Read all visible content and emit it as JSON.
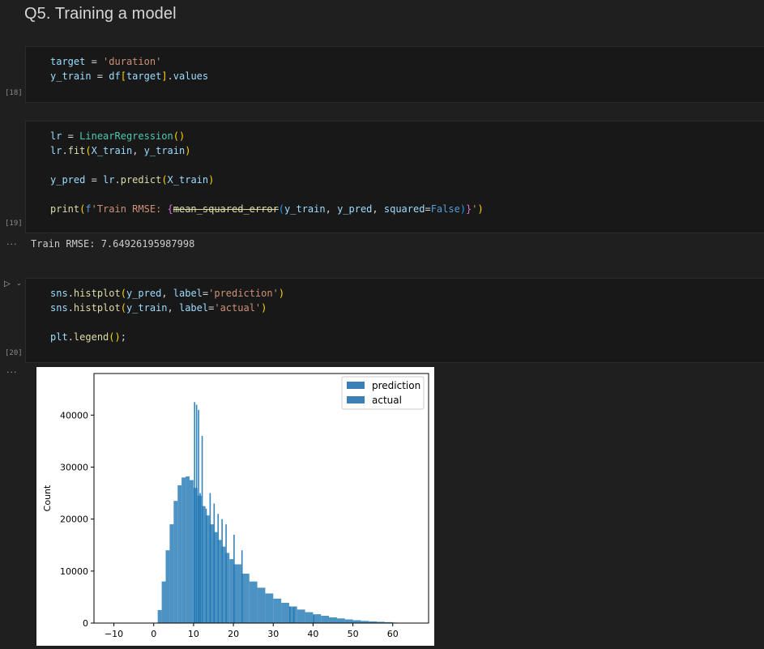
{
  "heading": "Q5. Training a model",
  "cells": [
    {
      "exec_count": "[18]",
      "lines": [
        [
          [
            "v",
            "target"
          ],
          [
            "o",
            " = "
          ],
          [
            "s",
            "'duration'"
          ]
        ],
        [
          [
            "v",
            "y_train"
          ],
          [
            "o",
            " = "
          ],
          [
            "v",
            "df"
          ],
          [
            "b1",
            "["
          ],
          [
            "v",
            "target"
          ],
          [
            "b1",
            "]"
          ],
          [
            "o",
            "."
          ],
          [
            "v",
            "values"
          ]
        ]
      ]
    },
    {
      "exec_count": "[19]",
      "lines": [
        [
          [
            "v",
            "lr"
          ],
          [
            "o",
            " = "
          ],
          [
            "c",
            "LinearRegression"
          ],
          [
            "b1",
            "()"
          ]
        ],
        [
          [
            "v",
            "lr"
          ],
          [
            "o",
            "."
          ],
          [
            "f",
            "fit"
          ],
          [
            "b1",
            "("
          ],
          [
            "v",
            "X_train"
          ],
          [
            "o",
            ", "
          ],
          [
            "v",
            "y_train"
          ],
          [
            "b1",
            ")"
          ]
        ],
        [],
        [
          [
            "v",
            "y_pred"
          ],
          [
            "o",
            " = "
          ],
          [
            "v",
            "lr"
          ],
          [
            "o",
            "."
          ],
          [
            "f",
            "predict"
          ],
          [
            "b1",
            "("
          ],
          [
            "v",
            "X_train"
          ],
          [
            "b1",
            ")"
          ]
        ],
        [],
        [
          [
            "f",
            "print"
          ],
          [
            "b1",
            "("
          ],
          [
            "k",
            "f"
          ],
          [
            "s",
            "'Train RMSE: "
          ],
          [
            "b2",
            "{"
          ],
          [
            "strike",
            "mean_squared_error"
          ],
          [
            "b3",
            "("
          ],
          [
            "v",
            "y_train"
          ],
          [
            "o",
            ", "
          ],
          [
            "v",
            "y_pred"
          ],
          [
            "o",
            ", "
          ],
          [
            "v",
            "squared"
          ],
          [
            "o",
            "="
          ],
          [
            "k",
            "False"
          ],
          [
            "b3",
            ")"
          ],
          [
            "b2",
            "}"
          ],
          [
            "s",
            "'"
          ],
          [
            "b1",
            ")"
          ]
        ]
      ],
      "output": "Train RMSE: 7.64926195987998"
    },
    {
      "exec_count": "[20]",
      "lines": [
        [
          [
            "v",
            "sns"
          ],
          [
            "o",
            "."
          ],
          [
            "f",
            "histplot"
          ],
          [
            "b1",
            "("
          ],
          [
            "v",
            "y_pred"
          ],
          [
            "o",
            ", "
          ],
          [
            "v",
            "label"
          ],
          [
            "o",
            "="
          ],
          [
            "s",
            "'prediction'"
          ],
          [
            "b1",
            ")"
          ]
        ],
        [
          [
            "v",
            "sns"
          ],
          [
            "o",
            "."
          ],
          [
            "f",
            "histplot"
          ],
          [
            "b1",
            "("
          ],
          [
            "v",
            "y_train"
          ],
          [
            "o",
            ", "
          ],
          [
            "v",
            "label"
          ],
          [
            "o",
            "="
          ],
          [
            "s",
            "'actual'"
          ],
          [
            "b1",
            ")"
          ]
        ],
        [],
        [
          [
            "v",
            "plt"
          ],
          [
            "o",
            "."
          ],
          [
            "f",
            "legend"
          ],
          [
            "b1",
            "()"
          ],
          [
            "o",
            ";"
          ]
        ]
      ]
    }
  ],
  "output_ellipsis": "···",
  "chart_data": {
    "type": "bar",
    "title": "",
    "xlabel": "",
    "ylabel": "Count",
    "xlim": [
      -15,
      69
    ],
    "ylim": [
      0,
      48000
    ],
    "xticks": [
      -10,
      0,
      10,
      20,
      30,
      40,
      50,
      60
    ],
    "yticks": [
      0,
      10000,
      20000,
      30000,
      40000
    ],
    "legend_position": "top-right",
    "series": [
      {
        "name": "prediction",
        "color": "#1f77b4",
        "x": [
          1,
          2,
          3,
          4,
          5,
          6,
          7,
          8,
          9,
          10,
          11,
          12,
          13,
          14,
          15,
          16,
          17,
          18,
          19,
          20,
          22,
          24,
          26,
          28,
          30,
          32,
          34,
          36,
          38,
          40,
          42,
          44,
          46,
          48,
          50,
          52,
          54,
          56,
          58,
          60
        ],
        "values": [
          2500,
          8000,
          14000,
          19000,
          23500,
          26500,
          28000,
          28200,
          27500,
          26000,
          24500,
          22500,
          20700,
          19000,
          17500,
          16000,
          14700,
          13500,
          12300,
          11300,
          9500,
          8000,
          6800,
          5700,
          4700,
          3900,
          3200,
          2600,
          2100,
          1700,
          1400,
          1100,
          900,
          700,
          550,
          420,
          320,
          250,
          180,
          100
        ]
      },
      {
        "name": "actual",
        "color": "#1f77b4",
        "x": [
          10.1,
          10.6,
          11.1,
          11.5,
          12.0,
          13.0,
          14.0,
          15.0,
          16.0,
          17.0,
          18.0,
          20.0,
          22.0,
          34.0,
          35.0,
          40.0
        ],
        "values": [
          42500,
          42000,
          41000,
          25000,
          36000,
          22000,
          25000,
          23000,
          21000,
          20000,
          19000,
          17000,
          14000,
          3200,
          3000,
          1500
        ]
      }
    ]
  }
}
